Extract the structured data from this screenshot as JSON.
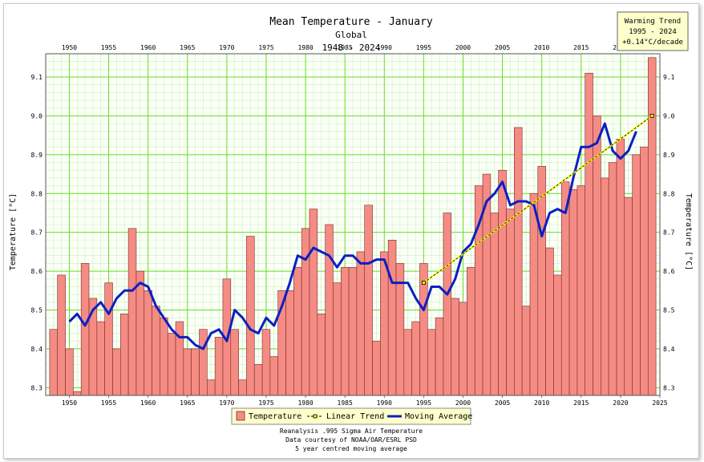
{
  "chart_data": {
    "type": "bar",
    "title": "Mean Temperature - January",
    "subtitle": "Global",
    "period": "1948 - 2024",
    "ylabel": "Temperature [°C]",
    "xlim": [
      1947,
      2025
    ],
    "ylim": [
      8.28,
      9.16
    ],
    "x_ticks": [
      1950,
      1955,
      1960,
      1965,
      1970,
      1975,
      1980,
      1985,
      1990,
      1995,
      2000,
      2005,
      2010,
      2015,
      2020,
      2025
    ],
    "y_ticks": [
      8.3,
      8.4,
      8.5,
      8.6,
      8.7,
      8.8,
      8.9,
      9.0,
      9.1
    ],
    "grid": true,
    "legend_position": "bottom",
    "colors": {
      "bars": "#f48c84",
      "bar_edge": "#7a2a2a",
      "moving_average": "#0b1fc4",
      "trend": "#ffff00",
      "grid_major": "#66dd22",
      "grid_minor": "#c8f0b8"
    },
    "series": [
      {
        "name": "Temperature",
        "years": [
          1948,
          1949,
          1950,
          1951,
          1952,
          1953,
          1954,
          1955,
          1956,
          1957,
          1958,
          1959,
          1960,
          1961,
          1962,
          1963,
          1964,
          1965,
          1966,
          1967,
          1968,
          1969,
          1970,
          1971,
          1972,
          1973,
          1974,
          1975,
          1976,
          1977,
          1978,
          1979,
          1980,
          1981,
          1982,
          1983,
          1984,
          1985,
          1986,
          1987,
          1988,
          1989,
          1990,
          1991,
          1992,
          1993,
          1994,
          1995,
          1996,
          1997,
          1998,
          1999,
          2000,
          2001,
          2002,
          2003,
          2004,
          2005,
          2006,
          2007,
          2008,
          2009,
          2010,
          2011,
          2012,
          2013,
          2014,
          2015,
          2016,
          2017,
          2018,
          2019,
          2020,
          2021,
          2022,
          2023,
          2024
        ],
        "values": [
          8.45,
          8.59,
          8.4,
          8.29,
          8.62,
          8.53,
          8.47,
          8.57,
          8.4,
          8.49,
          8.71,
          8.6,
          8.55,
          8.51,
          8.48,
          8.44,
          8.47,
          8.4,
          8.4,
          8.45,
          8.32,
          8.43,
          8.58,
          8.45,
          8.32,
          8.69,
          8.36,
          8.45,
          8.38,
          8.55,
          8.55,
          8.61,
          8.71,
          8.76,
          8.49,
          8.72,
          8.57,
          8.61,
          8.61,
          8.65,
          8.77,
          8.42,
          8.65,
          8.68,
          8.62,
          8.45,
          8.47,
          8.62,
          8.45,
          8.48,
          8.75,
          8.53,
          8.52,
          8.61,
          8.82,
          8.85,
          8.75,
          8.86,
          8.76,
          8.97,
          8.51,
          8.8,
          8.87,
          8.66,
          8.59,
          8.83,
          8.81,
          8.82,
          9.11,
          9.0,
          8.84,
          8.88,
          8.94,
          8.79,
          8.9,
          8.92,
          9.15
        ]
      },
      {
        "name": "Moving Average",
        "years": [
          1950,
          1951,
          1952,
          1953,
          1954,
          1955,
          1956,
          1957,
          1958,
          1959,
          1960,
          1961,
          1962,
          1963,
          1964,
          1965,
          1966,
          1967,
          1968,
          1969,
          1970,
          1971,
          1972,
          1973,
          1974,
          1975,
          1976,
          1977,
          1978,
          1979,
          1980,
          1981,
          1982,
          1983,
          1984,
          1985,
          1986,
          1987,
          1988,
          1989,
          1990,
          1991,
          1992,
          1993,
          1994,
          1995,
          1996,
          1997,
          1998,
          1999,
          2000,
          2001,
          2002,
          2003,
          2004,
          2005,
          2006,
          2007,
          2008,
          2009,
          2010,
          2011,
          2012,
          2013,
          2014,
          2015,
          2016,
          2017,
          2018,
          2019,
          2020,
          2021,
          2022
        ],
        "values": [
          8.47,
          8.49,
          8.46,
          8.5,
          8.52,
          8.49,
          8.53,
          8.55,
          8.55,
          8.57,
          8.56,
          8.51,
          8.48,
          8.45,
          8.43,
          8.43,
          8.41,
          8.4,
          8.44,
          8.45,
          8.42,
          8.5,
          8.48,
          8.45,
          8.44,
          8.48,
          8.46,
          8.51,
          8.57,
          8.64,
          8.63,
          8.66,
          8.65,
          8.64,
          8.61,
          8.64,
          8.64,
          8.62,
          8.62,
          8.63,
          8.63,
          8.57,
          8.57,
          8.57,
          8.53,
          8.5,
          8.56,
          8.56,
          8.54,
          8.58,
          8.65,
          8.67,
          8.72,
          8.78,
          8.8,
          8.83,
          8.77,
          8.78,
          8.78,
          8.77,
          8.69,
          8.75,
          8.76,
          8.75,
          8.84,
          8.92,
          8.92,
          8.93,
          8.98,
          8.91,
          8.89,
          8.91,
          8.96
        ]
      },
      {
        "name": "Linear Trend",
        "x": [
          1995,
          2024
        ],
        "values": [
          8.57,
          9.0
        ]
      }
    ],
    "legend": [
      "Temperature",
      "Linear Trend",
      "Moving Average"
    ],
    "warming_box": {
      "title": "Warming Trend",
      "period": "1995 - 2024",
      "rate": "+0.14°C/decade"
    },
    "footer": [
      "Reanalysis .995 Sigma Air Temperature",
      "Data courtesy of NOAA/OAR/ESRL PSD",
      "5 year centred moving average"
    ]
  }
}
